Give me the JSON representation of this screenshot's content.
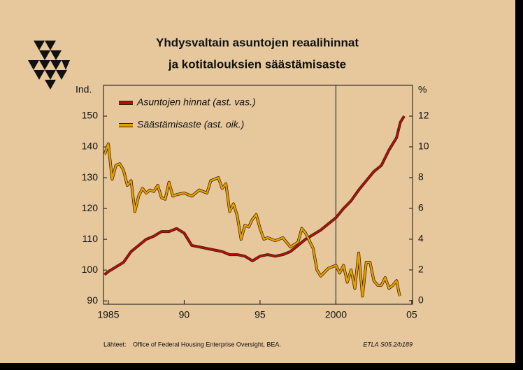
{
  "chart_data": {
    "type": "line",
    "title": [
      "Yhdysvaltain asuntojen reaalihinnat",
      "ja kotitalouksien säästämisaste"
    ],
    "y_label": "Ind.",
    "y2_label": "%",
    "source_label": "Lähteet:",
    "source": "Office of Federal Housing Enterprise Oversight, BEA.",
    "code": "ETLA S05.2/b189",
    "xlim": [
      1984.68,
      2005.05
    ],
    "xticks": [
      {
        "value": 1985,
        "label": "1985"
      },
      {
        "value": 1990,
        "label": "90"
      },
      {
        "value": 1995,
        "label": "95"
      },
      {
        "value": 2000,
        "label": "2000"
      },
      {
        "value": 2005,
        "label": "05"
      }
    ],
    "ylim": [
      88.9,
      160
    ],
    "yticks": [
      90,
      100,
      110,
      120,
      130,
      140,
      150
    ],
    "y2lim": [
      -0.23,
      14
    ],
    "y2ticks": [
      0,
      2,
      4,
      6,
      8,
      10,
      12
    ],
    "legend": "upper left",
    "series": [
      {
        "name": "Asuntojen hinnat (ast. vas.)",
        "color": "#b01010",
        "x": [
          1984.75,
          1985,
          1985.5,
          1986,
          1986.5,
          1987,
          1987.5,
          1988,
          1988.5,
          1989,
          1989.5,
          1990,
          1990.5,
          1991,
          1991.5,
          1992,
          1992.5,
          1993,
          1993.5,
          1994,
          1994.5,
          1995,
          1995.5,
          1996,
          1996.5,
          1997,
          1997.5,
          1998,
          1998.5,
          1999,
          1999.5,
          2000,
          2000.5,
          2001,
          2001.5,
          2002,
          2002.5,
          2003,
          2003.5,
          2004,
          2004.25,
          2004.5
        ],
        "values": [
          98.5,
          99.5,
          101,
          102.5,
          106,
          108,
          110,
          111,
          112.5,
          112.5,
          113.5,
          112,
          108,
          107.5,
          107,
          106.5,
          106,
          105,
          105,
          104.5,
          103,
          104.5,
          105,
          104.5,
          105,
          106,
          108,
          110,
          111.5,
          113,
          115,
          117,
          120,
          122.5,
          126,
          129,
          132,
          134,
          139,
          143,
          148,
          150
        ]
      },
      {
        "name": "Säästämisaste (ast. oik.)",
        "color": "#e8a000",
        "axis": "y2",
        "x": [
          1984.75,
          1985,
          1985.25,
          1985.5,
          1985.75,
          1986,
          1986.25,
          1986.5,
          1986.75,
          1987,
          1987.25,
          1987.5,
          1987.75,
          1988,
          1988.25,
          1988.5,
          1988.75,
          1989,
          1989.25,
          1989.5,
          1990,
          1990.5,
          1991,
          1991.5,
          1991.75,
          1992.25,
          1992.5,
          1992.75,
          1993,
          1993.25,
          1993.5,
          1993.75,
          1994,
          1994.25,
          1994.5,
          1994.75,
          1995,
          1995.25,
          1995.5,
          1996,
          1996.5,
          1997,
          1997.5,
          1997.75,
          1998,
          1998.5,
          1998.75,
          1999,
          1999.5,
          2000,
          2000.25,
          2000.5,
          2000.75,
          2001,
          2001.25,
          2001.5,
          2001.75,
          2002,
          2002.25,
          2002.5,
          2002.75,
          2003,
          2003.25,
          2003.5,
          2003.75,
          2004,
          2004.2
        ],
        "values": [
          9.5,
          10.2,
          7.9,
          8.8,
          8.9,
          8.5,
          7.5,
          7.8,
          5.8,
          6.8,
          7.3,
          7.0,
          7.2,
          7.1,
          7.5,
          6.7,
          6.6,
          7.7,
          6.8,
          6.9,
          7.0,
          6.8,
          7.2,
          7.0,
          7.8,
          8.0,
          7.3,
          7.6,
          5.8,
          6.3,
          5.5,
          4.0,
          4.9,
          4.8,
          5.3,
          5.6,
          4.7,
          4.0,
          4.1,
          3.9,
          4.1,
          3.5,
          3.8,
          4.7,
          4.4,
          3.4,
          2.0,
          1.6,
          2.1,
          2.3,
          1.8,
          2.3,
          1.2,
          2.0,
          0.8,
          3.1,
          0.3,
          2.5,
          2.5,
          1.3,
          1.0,
          1.0,
          1.5,
          0.8,
          1.0,
          1.3,
          0.3
        ]
      }
    ]
  }
}
